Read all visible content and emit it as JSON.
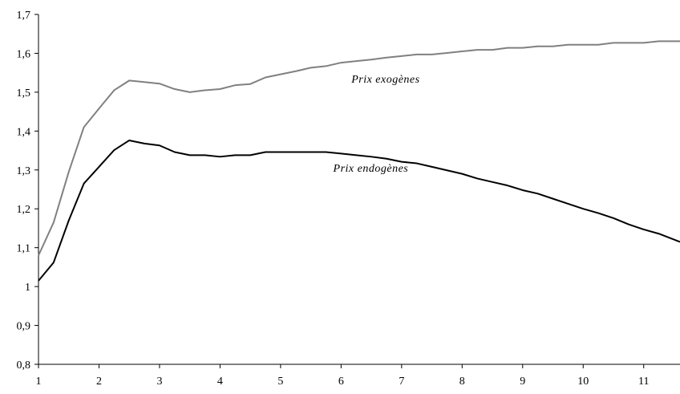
{
  "chart_data": {
    "type": "line",
    "title": "",
    "xlabel": "",
    "ylabel": "",
    "xlim": [
      1,
      11.6
    ],
    "ylim": [
      0.8,
      1.7
    ],
    "x_ticks": [
      1,
      2,
      3,
      4,
      5,
      6,
      7,
      8,
      9,
      10,
      11
    ],
    "x_tick_labels": [
      "1",
      "2",
      "3",
      "4",
      "5",
      "6",
      "7",
      "8",
      "9",
      "10",
      "11"
    ],
    "y_ticks": [
      0.8,
      0.9,
      1.0,
      1.1,
      1.2,
      1.3,
      1.4,
      1.5,
      1.6,
      1.7
    ],
    "y_tick_labels": [
      "0,8",
      "0,9",
      "1",
      "1,1",
      "1,2",
      "1,3",
      "1,4",
      "1,5",
      "1,6",
      "1,7"
    ],
    "grid": false,
    "legend": "none",
    "series": [
      {
        "name": "Prix exogènes",
        "color": "#808080",
        "x": [
          1,
          1.25,
          1.5,
          1.75,
          2,
          2.25,
          2.5,
          2.75,
          3,
          3.25,
          3.5,
          3.75,
          4,
          4.25,
          4.5,
          4.75,
          5,
          5.25,
          5.5,
          5.75,
          6,
          6.25,
          6.5,
          6.75,
          7,
          7.25,
          7.5,
          7.75,
          8,
          8.25,
          8.5,
          8.75,
          9,
          9.25,
          9.5,
          9.75,
          10,
          10.25,
          10.5,
          10.75,
          11,
          11.25,
          11.6
        ],
        "values": [
          1.08,
          1.165,
          1.295,
          1.41,
          1.458,
          1.505,
          1.53,
          1.526,
          1.522,
          1.508,
          1.5,
          1.505,
          1.508,
          1.518,
          1.521,
          1.538,
          1.546,
          1.554,
          1.563,
          1.567,
          1.576,
          1.58,
          1.584,
          1.589,
          1.593,
          1.597,
          1.597,
          1.601,
          1.605,
          1.609,
          1.609,
          1.614,
          1.614,
          1.618,
          1.618,
          1.622,
          1.622,
          1.622,
          1.627,
          1.627,
          1.627,
          1.631,
          1.631
        ]
      },
      {
        "name": "Prix endogènes",
        "color": "#000000",
        "x": [
          1,
          1.25,
          1.5,
          1.75,
          2,
          2.25,
          2.5,
          2.75,
          3,
          3.25,
          3.5,
          3.75,
          4,
          4.25,
          4.5,
          4.75,
          5,
          5.25,
          5.5,
          5.75,
          6,
          6.25,
          6.5,
          6.75,
          7,
          7.25,
          7.5,
          7.75,
          8,
          8.25,
          8.5,
          8.75,
          9,
          9.25,
          9.5,
          9.75,
          10,
          10.25,
          10.5,
          10.75,
          11,
          11.25,
          11.6
        ],
        "values": [
          1.015,
          1.062,
          1.17,
          1.265,
          1.308,
          1.351,
          1.376,
          1.368,
          1.363,
          1.346,
          1.338,
          1.338,
          1.334,
          1.338,
          1.338,
          1.346,
          1.346,
          1.346,
          1.346,
          1.346,
          1.342,
          1.338,
          1.334,
          1.329,
          1.321,
          1.317,
          1.308,
          1.299,
          1.29,
          1.278,
          1.269,
          1.26,
          1.248,
          1.239,
          1.226,
          1.213,
          1.2,
          1.189,
          1.176,
          1.16,
          1.147,
          1.136,
          1.115
        ]
      }
    ],
    "annotations": [
      {
        "text": "Prix exogènes",
        "x": 6.17,
        "y": 1.525
      },
      {
        "text": "Prix endogènes",
        "x": 5.87,
        "y": 1.295
      }
    ]
  }
}
